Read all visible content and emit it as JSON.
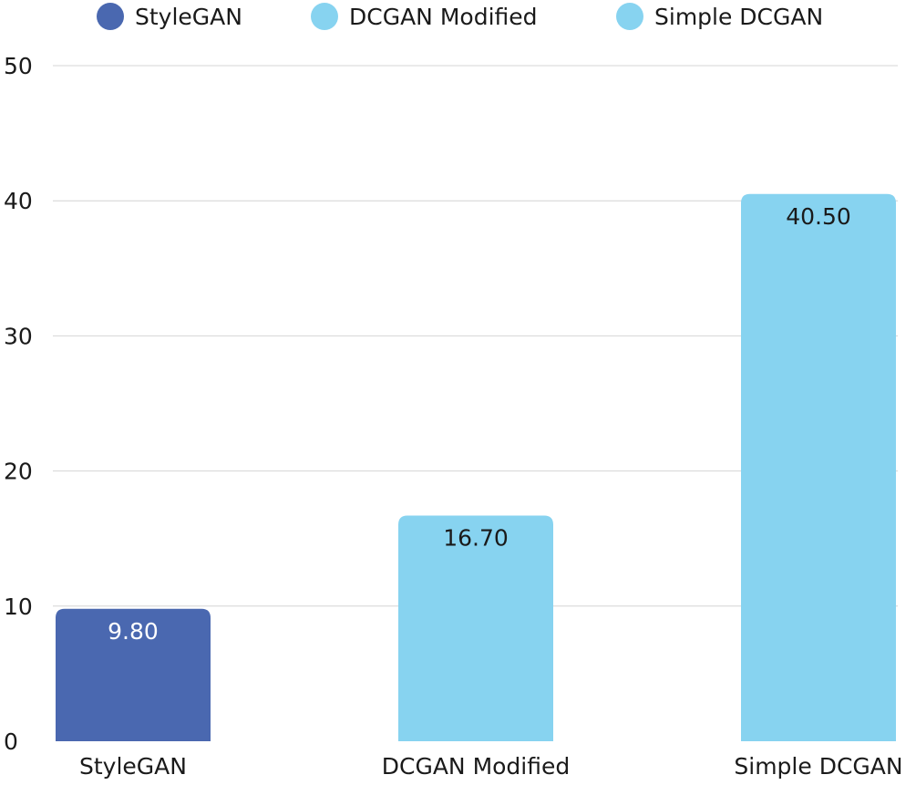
{
  "chart_data": {
    "type": "bar",
    "title": "",
    "xlabel": "",
    "ylabel": "",
    "categories": [
      "StyleGAN",
      "DCGAN Modified",
      "Simple DCGAN"
    ],
    "values": [
      9.8,
      16.7,
      40.5
    ],
    "value_labels": [
      "9.80",
      "16.70",
      "40.50"
    ],
    "value_label_colors": [
      "#ffffff",
      "#1a1a1a",
      "#1a1a1a"
    ],
    "colors": [
      "#4a68b0",
      "#87d3f0",
      "#87d3f0"
    ],
    "ylim": [
      0,
      50
    ],
    "yticks": [
      0,
      10,
      20,
      30,
      40,
      50
    ],
    "grid": true,
    "legend": {
      "placement": "top",
      "entries": [
        {
          "label": "StyleGAN",
          "color": "#4a68b0"
        },
        {
          "label": "DCGAN Modified",
          "color": "#87d3f0"
        },
        {
          "label": "Simple DCGAN",
          "color": "#87d3f0"
        }
      ]
    }
  }
}
